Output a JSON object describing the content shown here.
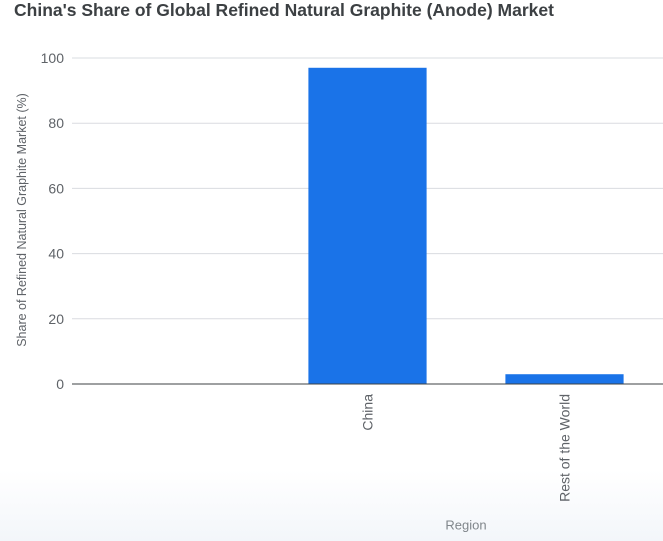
{
  "chart_data": {
    "type": "bar",
    "title": "China's Share of Global Refined Natural Graphite (Anode) Market",
    "xlabel": "Region",
    "ylabel": "Share of Refined Natural Graphite Market (%)",
    "categories": [
      "",
      "China",
      "Rest of the World"
    ],
    "values": [
      null,
      97,
      3
    ],
    "ylim": [
      0,
      100
    ],
    "yticks": [
      "0",
      "20",
      "40",
      "60",
      "80",
      "100"
    ],
    "grid": true,
    "legend": "none",
    "colors": {
      "bar": "#1a73e8",
      "grid": "#dadce0",
      "axis": "#3c4043",
      "tick_text": "#5f6368"
    }
  }
}
